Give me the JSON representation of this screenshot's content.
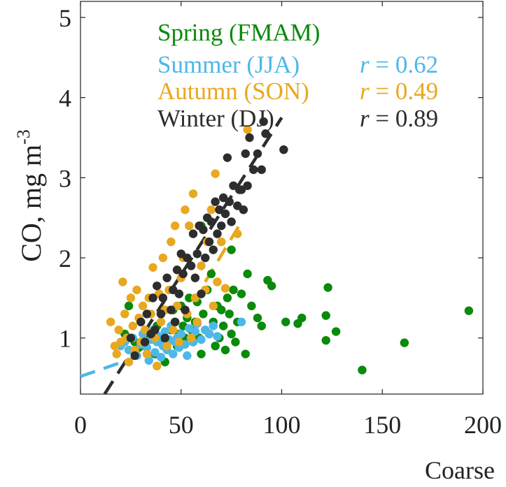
{
  "chart_data": {
    "type": "scatter",
    "title": "",
    "xlabel": "Coarse",
    "ylabel": "CO, mg m",
    "ylabel_superscript": "-3",
    "xlim": [
      0,
      200
    ],
    "ylim": [
      0.3,
      5.2
    ],
    "x_ticks": [
      0,
      50,
      100,
      150,
      200
    ],
    "y_ticks": [
      1,
      2,
      3,
      4,
      5
    ],
    "x_tick_labels": [
      "0",
      "50",
      "100",
      "150",
      "200"
    ],
    "y_tick_labels": [
      "1",
      "2",
      "3",
      "4",
      "5"
    ],
    "grid": false,
    "legend_position": "top-right",
    "series": [
      {
        "name": "Spring (FMAM)",
        "color": "#0a8a0a",
        "r_label": "",
        "points": [
          [
            22,
            1.05
          ],
          [
            24,
            1.4
          ],
          [
            27,
            0.95
          ],
          [
            29,
            0.88
          ],
          [
            30,
            1.2
          ],
          [
            32,
            0.9
          ],
          [
            34,
            1.05
          ],
          [
            36,
            1.0
          ],
          [
            37,
            0.8
          ],
          [
            38,
            1.15
          ],
          [
            40,
            1.3
          ],
          [
            41,
            1.0
          ],
          [
            42,
            0.7
          ],
          [
            43,
            0.95
          ],
          [
            45,
            1.1
          ],
          [
            46,
            1.35
          ],
          [
            47,
            1.2
          ],
          [
            48,
            0.9
          ],
          [
            49,
            1.05
          ],
          [
            50,
            1.4
          ],
          [
            51,
            1.15
          ],
          [
            52,
            1.0
          ],
          [
            53,
            1.25
          ],
          [
            54,
            1.5
          ],
          [
            55,
            1.1
          ],
          [
            56,
            0.95
          ],
          [
            57,
            1.2
          ],
          [
            58,
            1.45
          ],
          [
            59,
            1.0
          ],
          [
            60,
            2.4
          ],
          [
            60,
            0.8
          ],
          [
            61,
            1.3
          ],
          [
            62,
            1.1
          ],
          [
            63,
            1.6
          ],
          [
            64,
            1.05
          ],
          [
            65,
            1.8
          ],
          [
            66,
            1.2
          ],
          [
            67,
            0.9
          ],
          [
            68,
            1.4
          ],
          [
            69,
            1.0
          ],
          [
            70,
            1.35
          ],
          [
            71,
            1.15
          ],
          [
            72,
            0.85
          ],
          [
            73,
            1.5
          ],
          [
            74,
            1.3
          ],
          [
            75,
            2.1
          ],
          [
            75,
            1.05
          ],
          [
            76,
            1.6
          ],
          [
            77,
            0.95
          ],
          [
            78,
            1.2
          ],
          [
            80,
            1.55
          ],
          [
            82,
            0.8
          ],
          [
            83,
            1.8
          ],
          [
            85,
            1.4
          ],
          [
            88,
            1.25
          ],
          [
            90,
            1.15
          ],
          [
            93,
            1.72
          ],
          [
            95,
            1.65
          ],
          [
            102,
            1.2
          ],
          [
            108,
            1.18
          ],
          [
            110,
            1.25
          ],
          [
            122,
            1.28
          ],
          [
            122,
            0.97
          ],
          [
            123,
            1.63
          ],
          [
            127,
            1.08
          ],
          [
            140,
            0.6
          ],
          [
            161,
            0.94
          ],
          [
            193,
            1.34
          ]
        ]
      },
      {
        "name": "Summer (JJA)",
        "color": "#4db8e8",
        "r_label": "r = 0.62",
        "points": [
          [
            20,
            0.9
          ],
          [
            22,
            0.95
          ],
          [
            24,
            0.85
          ],
          [
            26,
            1.0
          ],
          [
            28,
            0.78
          ],
          [
            30,
            0.92
          ],
          [
            31,
            1.05
          ],
          [
            33,
            0.88
          ],
          [
            34,
            0.72
          ],
          [
            35,
            0.98
          ],
          [
            36,
            1.1
          ],
          [
            37,
            0.82
          ],
          [
            38,
            0.95
          ],
          [
            39,
            1.02
          ],
          [
            40,
            0.76
          ],
          [
            41,
            0.9
          ],
          [
            42,
            1.08
          ],
          [
            43,
            0.85
          ],
          [
            44,
            0.98
          ],
          [
            45,
            1.15
          ],
          [
            46,
            0.8
          ],
          [
            47,
            0.95
          ],
          [
            48,
            1.0
          ],
          [
            49,
            0.88
          ],
          [
            50,
            1.05
          ],
          [
            52,
            0.92
          ],
          [
            53,
            0.78
          ],
          [
            54,
            1.12
          ],
          [
            55,
            1.0
          ],
          [
            56,
            0.95
          ],
          [
            57,
            1.08
          ],
          [
            58,
            1.18
          ],
          [
            60,
            0.98
          ],
          [
            62,
            1.1
          ],
          [
            64,
            1.05
          ],
          [
            66,
            1.15
          ],
          [
            68,
            1.02
          ],
          [
            80,
            1.2
          ]
        ]
      },
      {
        "name": "Autumn (SON)",
        "color": "#e8a820",
        "r_label": "r = 0.49",
        "points": [
          [
            15,
            1.2
          ],
          [
            17,
            0.9
          ],
          [
            18,
            0.8
          ],
          [
            19,
            1.1
          ],
          [
            20,
            0.95
          ],
          [
            21,
            1.7
          ],
          [
            22,
            1.3
          ],
          [
            23,
            1.0
          ],
          [
            24,
            0.7
          ],
          [
            25,
            1.5
          ],
          [
            26,
            1.15
          ],
          [
            27,
            0.85
          ],
          [
            28,
            1.6
          ],
          [
            29,
            1.25
          ],
          [
            30,
            0.95
          ],
          [
            31,
            1.4
          ],
          [
            32,
            1.1
          ],
          [
            33,
            0.8
          ],
          [
            34,
            1.5
          ],
          [
            35,
            1.3
          ],
          [
            36,
            1.88
          ],
          [
            37,
            1.0
          ],
          [
            38,
            0.65
          ],
          [
            39,
            1.55
          ],
          [
            40,
            1.2
          ],
          [
            41,
            2.0
          ],
          [
            42,
            1.35
          ],
          [
            43,
            0.9
          ],
          [
            44,
            1.6
          ],
          [
            45,
            2.2
          ],
          [
            46,
            1.1
          ],
          [
            47,
            2.4
          ],
          [
            48,
            1.4
          ],
          [
            49,
            0.95
          ],
          [
            50,
            1.75
          ],
          [
            51,
            2.0
          ],
          [
            52,
            2.6
          ],
          [
            53,
            1.3
          ],
          [
            54,
            2.4
          ],
          [
            55,
            1.0
          ],
          [
            56,
            2.8
          ],
          [
            57,
            1.5
          ],
          [
            58,
            1.2
          ],
          [
            60,
            1.9
          ],
          [
            62,
            1.6
          ],
          [
            63,
            2.2
          ],
          [
            65,
            2.6
          ],
          [
            66,
            1.4
          ],
          [
            67,
            3.05
          ],
          [
            68,
            1.7
          ],
          [
            70,
            2.2
          ],
          [
            72,
            1.62
          ],
          [
            75,
            2.45
          ],
          [
            78,
            2.3
          ],
          [
            83,
            3.6
          ]
        ]
      },
      {
        "name": "Winter (DJ)",
        "color": "#2d2d2d",
        "r_label": "r = 0.89",
        "points": [
          [
            25,
            1.0
          ],
          [
            27,
            0.78
          ],
          [
            30,
            1.2
          ],
          [
            32,
            0.95
          ],
          [
            33,
            1.3
          ],
          [
            35,
            1.05
          ],
          [
            36,
            1.5
          ],
          [
            37,
            1.1
          ],
          [
            38,
            1.65
          ],
          [
            40,
            1.3
          ],
          [
            41,
            1.5
          ],
          [
            42,
            1.0
          ],
          [
            43,
            1.75
          ],
          [
            45,
            1.35
          ],
          [
            46,
            1.6
          ],
          [
            47,
            1.2
          ],
          [
            48,
            1.85
          ],
          [
            49,
            1.55
          ],
          [
            50,
            2.05
          ],
          [
            51,
            1.8
          ],
          [
            52,
            1.35
          ],
          [
            53,
            2.0
          ],
          [
            55,
            1.9
          ],
          [
            56,
            2.3
          ],
          [
            57,
            1.75
          ],
          [
            58,
            2.05
          ],
          [
            59,
            2.4
          ],
          [
            60,
            1.55
          ],
          [
            61,
            2.35
          ],
          [
            62,
            2.0
          ],
          [
            63,
            2.5
          ],
          [
            64,
            2.2
          ],
          [
            65,
            2.45
          ],
          [
            66,
            2.1
          ],
          [
            67,
            2.7
          ],
          [
            68,
            2.3
          ],
          [
            69,
            2.6
          ],
          [
            70,
            2.4
          ],
          [
            71,
            2.75
          ],
          [
            72,
            2.55
          ],
          [
            73,
            3.25
          ],
          [
            74,
            2.7
          ],
          [
            75,
            2.45
          ],
          [
            76,
            2.9
          ],
          [
            78,
            2.65
          ],
          [
            79,
            2.85
          ],
          [
            80,
            2.85
          ],
          [
            81,
            2.6
          ],
          [
            82,
            3.3
          ],
          [
            83,
            2.9
          ],
          [
            84,
            3.5
          ],
          [
            86,
            3.1
          ],
          [
            88,
            3.3
          ],
          [
            90,
            3.1
          ],
          [
            91,
            3.7
          ],
          [
            92,
            3.55
          ],
          [
            101,
            3.35
          ]
        ]
      }
    ],
    "trend_lines": [
      {
        "series": "Summer (JJA)",
        "x": [
          0,
          30
        ],
        "y": [
          0.52,
          0.78
        ]
      },
      {
        "series": "Autumn (SON)",
        "x": [
          62,
          80
        ],
        "y": [
          1.7,
          2.45
        ]
      },
      {
        "series": "Winter (DJ)",
        "x": [
          12,
          100
        ],
        "y": [
          0.3,
          3.75
        ]
      }
    ]
  }
}
